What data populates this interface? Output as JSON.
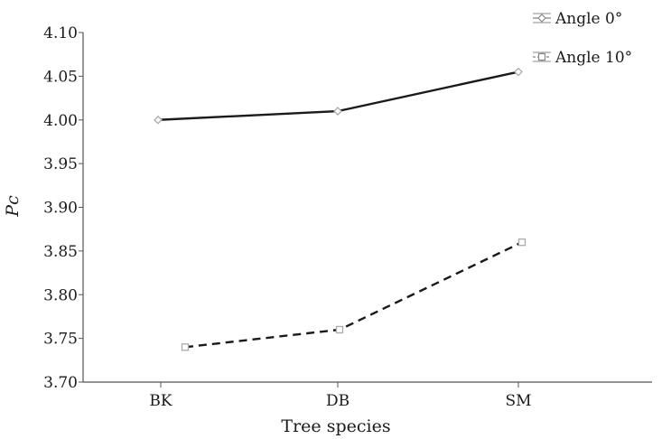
{
  "chart_data": {
    "type": "line",
    "categories": [
      "BK",
      "DB",
      "SM"
    ],
    "series": [
      {
        "name": "Angle 0°",
        "values": [
          4.0,
          4.01,
          4.055
        ],
        "line_style": "solid",
        "marker": "diamond",
        "color": "#1a1a1a",
        "marker_color": "#aaaaaa"
      },
      {
        "name": "Angle 10°",
        "values": [
          3.74,
          3.76,
          3.86
        ],
        "line_style": "dashed",
        "marker": "square",
        "color": "#1a1a1a",
        "marker_color": "#aaaaaa"
      }
    ],
    "xlabel": "Tree species",
    "ylabel": "Pc",
    "ylim": [
      3.7,
      4.1
    ],
    "yticks": [
      "3.70",
      "3.75",
      "3.80",
      "3.85",
      "3.90",
      "3.95",
      "4.00",
      "4.05",
      "4.10"
    ],
    "grid": false,
    "legend_position": "top-right"
  }
}
